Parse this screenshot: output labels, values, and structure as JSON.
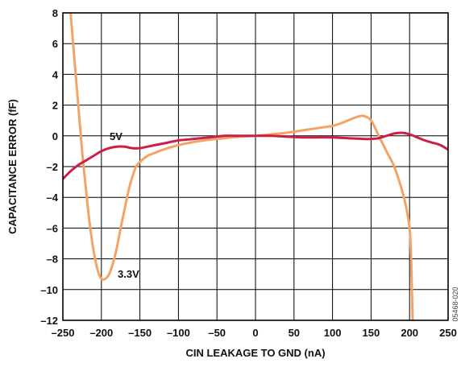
{
  "chart_data": {
    "type": "line",
    "xlabel": "CIN LEAKAGE TO GND (nA)",
    "ylabel": "CAPACITANCE ERROR (fF)",
    "xlim": [
      -250,
      250
    ],
    "ylim": [
      -12,
      8
    ],
    "xticks": [
      -250,
      -200,
      -150,
      -100,
      -50,
      0,
      50,
      100,
      150,
      200,
      250
    ],
    "yticks": [
      -12,
      -10,
      -8,
      -6,
      -4,
      -2,
      0,
      2,
      4,
      6,
      8
    ],
    "xtick_labels": [
      "–250",
      "–200",
      "–150",
      "–100",
      "–50",
      "0",
      "50",
      "100",
      "150",
      "200",
      "250"
    ],
    "ytick_labels": [
      "–12",
      "–10",
      "–8",
      "–6",
      "–4",
      "–2",
      "0",
      "2",
      "4",
      "6",
      "8"
    ],
    "grid": true,
    "series": [
      {
        "name": "5V",
        "color": "#cc1e46",
        "x": [
          -250,
          -240,
          -230,
          -220,
          -210,
          -200,
          -190,
          -180,
          -170,
          -160,
          -150,
          -140,
          -120,
          -100,
          -80,
          -60,
          -40,
          -20,
          0,
          20,
          40,
          60,
          80,
          100,
          120,
          140,
          150,
          160,
          170,
          180,
          190,
          200,
          210,
          220,
          230,
          240,
          250
        ],
        "y": [
          -2.8,
          -2.3,
          -1.9,
          -1.6,
          -1.3,
          -1.0,
          -0.8,
          -0.7,
          -0.7,
          -0.8,
          -0.8,
          -0.7,
          -0.5,
          -0.3,
          -0.2,
          -0.1,
          0.0,
          0.0,
          0.0,
          0.0,
          -0.05,
          -0.1,
          -0.1,
          -0.1,
          -0.15,
          -0.2,
          -0.2,
          -0.15,
          0.0,
          0.15,
          0.2,
          0.1,
          -0.1,
          -0.3,
          -0.45,
          -0.6,
          -0.9
        ]
      },
      {
        "name": "3.3V",
        "color": "#f4a366",
        "x": [
          -240,
          -235,
          -230,
          -225,
          -220,
          -215,
          -210,
          -205,
          -200,
          -195,
          -190,
          -185,
          -180,
          -175,
          -170,
          -165,
          -160,
          -155,
          -150,
          -140,
          -130,
          -120,
          -100,
          -80,
          -60,
          -40,
          -20,
          0,
          20,
          40,
          60,
          80,
          100,
          110,
          120,
          130,
          140,
          150,
          160,
          170,
          180,
          190,
          195,
          200,
          202,
          203,
          204
        ],
        "y": [
          8.0,
          5.0,
          2.0,
          -1.0,
          -3.5,
          -5.8,
          -7.5,
          -8.7,
          -9.3,
          -9.3,
          -9.0,
          -8.3,
          -7.3,
          -6.0,
          -4.8,
          -3.6,
          -2.7,
          -2.0,
          -1.7,
          -1.3,
          -1.1,
          -0.9,
          -0.6,
          -0.4,
          -0.25,
          -0.15,
          -0.05,
          0.0,
          0.1,
          0.2,
          0.35,
          0.5,
          0.65,
          0.8,
          1.0,
          1.2,
          1.3,
          1.0,
          0.0,
          -1.0,
          -2.0,
          -3.5,
          -4.5,
          -6.0,
          -8.0,
          -10.0,
          -12.0
        ]
      }
    ],
    "annotations": [
      {
        "text": "5V",
        "series": "5V"
      },
      {
        "text": "3.3V",
        "series": "3.3V"
      }
    ],
    "figure_id": "05468-020"
  }
}
